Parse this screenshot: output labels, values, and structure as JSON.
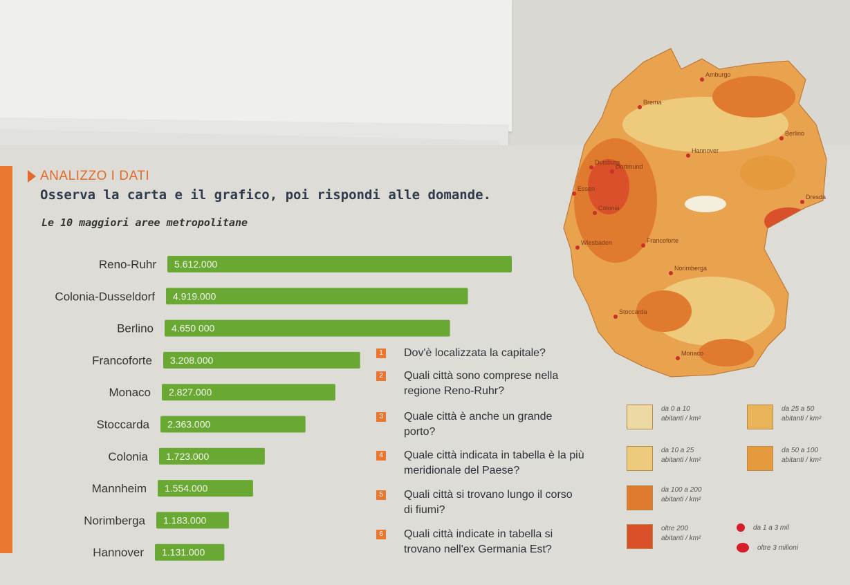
{
  "section": {
    "heading": "ANALIZZO I DATI",
    "instruction": "Osserva la carta e il grafico, poi rispondi alle domande."
  },
  "chart_data": {
    "type": "bar",
    "title": "Le 10 maggiori aree metropolitane",
    "categories": [
      "Reno-Ruhr",
      "Colonia-Dusseldorf",
      "Berlino",
      "Francoforte",
      "Monaco",
      "Stoccarda",
      "Colonia",
      "Mannheim",
      "Norimberga",
      "Hannover"
    ],
    "values": [
      5612000,
      4919000,
      4650000,
      3208000,
      2827000,
      2363000,
      1723000,
      1554000,
      1183000,
      1131000
    ],
    "value_labels": [
      "5.612.000",
      "4.919.000",
      "4.650 000",
      "3.208.000",
      "2.827.000",
      "2.363.000",
      "1.723.000",
      "1.554.000",
      "1.183.000",
      "1.131.000"
    ],
    "bar_color": "#6aa834",
    "xlabel": "",
    "ylabel": ""
  },
  "questions": [
    {
      "num": "1",
      "lines": [
        "Dov'è localizzata la capitale?"
      ]
    },
    {
      "num": "2",
      "lines": [
        "Quali città sono comprese nella",
        "regione Reno-Ruhr?"
      ]
    },
    {
      "num": "3",
      "lines": [
        "Quale città è anche un grande",
        "porto?"
      ]
    },
    {
      "num": "4",
      "lines": [
        "Quale città indicata in tabella è la più",
        "meridionale del Paese?"
      ]
    },
    {
      "num": "5",
      "lines": [
        "Quali città si trovano lungo il corso",
        "di fiumi?"
      ]
    },
    {
      "num": "6",
      "lines": [
        "Quali città indicate in tabella si",
        "trovano nell'ex Germania Est?"
      ]
    }
  ],
  "map": {
    "labels": [
      "Amburgo",
      "Brema",
      "Berlino",
      "Hannover",
      "Duisburg",
      "Dortmund",
      "Essen",
      "Colonia",
      "Dresda",
      "Wiesbaden",
      "Francoforte",
      "Norimberga",
      "Stoccarda",
      "Monaco"
    ]
  },
  "legend": {
    "items": [
      {
        "range": "da 0 a 10",
        "unit": "abitanti / km²",
        "color": "#ecd9a3"
      },
      {
        "range": "da 25 a 50",
        "unit": "abitanti / km²",
        "color": "#e9b35a"
      },
      {
        "range": "da 10 a 25",
        "unit": "abitanti / km²",
        "color": "#eecb7c"
      },
      {
        "range": "da 50 a 100",
        "unit": "abitanti / km²",
        "color": "#e69a3e"
      },
      {
        "range": "da 100 a 200",
        "unit": "abitanti / km²",
        "color": "#e07a2e"
      },
      {
        "range": "oltre 200",
        "unit": "abitanti / km²",
        "color": "#d9502a"
      }
    ],
    "dots": [
      {
        "label": "da 1 a 3 mil"
      },
      {
        "label": "oltre 3 milioni"
      }
    ]
  }
}
